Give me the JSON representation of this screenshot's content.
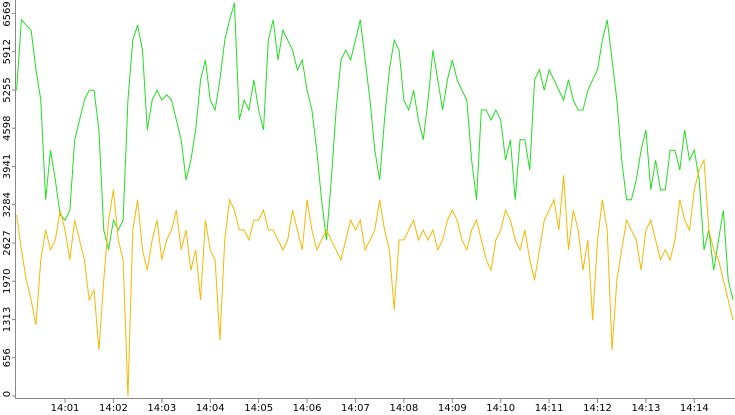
{
  "chart_data": {
    "type": "line",
    "x": [
      0,
      0.1,
      0.2,
      0.3,
      0.4,
      0.5,
      0.6,
      0.7,
      0.8,
      0.9,
      1,
      1.1,
      1.2,
      1.3,
      1.4,
      1.5,
      1.6,
      1.7,
      1.8,
      1.9,
      2,
      2.1,
      2.2,
      2.3,
      2.4,
      2.5,
      2.6,
      2.7,
      2.8,
      2.9,
      3,
      3.1,
      3.2,
      3.3,
      3.4,
      3.5,
      3.6,
      3.7,
      3.8,
      3.9,
      4,
      4.1,
      4.2,
      4.3,
      4.4,
      4.5,
      4.6,
      4.7,
      4.8,
      4.9,
      5,
      5.1,
      5.2,
      5.3,
      5.4,
      5.5,
      5.6,
      5.7,
      5.8,
      5.9,
      6,
      6.1,
      6.2,
      6.3,
      6.4,
      6.5,
      6.6,
      6.7,
      6.8,
      6.9,
      7,
      7.1,
      7.2,
      7.3,
      7.4,
      7.5,
      7.6,
      7.7,
      7.8,
      7.9,
      8,
      8.1,
      8.2,
      8.3,
      8.4,
      8.5,
      8.6,
      8.7,
      8.8,
      8.9,
      9,
      9.1,
      9.2,
      9.3,
      9.4,
      9.5,
      9.6,
      9.7,
      9.8,
      9.9,
      10,
      10.1,
      10.2,
      10.3,
      10.4,
      10.5,
      10.6,
      10.7,
      10.8,
      10.9,
      11,
      11.1,
      11.2,
      11.3,
      11.4,
      11.5,
      11.6,
      11.7,
      11.8,
      11.9,
      12,
      12.1,
      12.2,
      12.3,
      12.4,
      12.5,
      12.6,
      12.7,
      12.8,
      12.9,
      13,
      13.1,
      13.2,
      13.3,
      13.4,
      13.5,
      13.6,
      13.7,
      13.8,
      13.9,
      14,
      14.1,
      14.2,
      14.3,
      14.4,
      14.5,
      14.6,
      14.7,
      14.8
    ],
    "series": [
      {
        "color": "#22dd22",
        "values": [
          5250,
          6460,
          6370,
          6280,
          5600,
          5080,
          3370,
          4220,
          3710,
          3110,
          3020,
          3190,
          4400,
          4740,
          5080,
          5250,
          5250,
          4570,
          2850,
          2510,
          3020,
          2850,
          3020,
          5080,
          6110,
          6370,
          5940,
          4570,
          5080,
          5250,
          5080,
          5170,
          5080,
          4740,
          4400,
          3710,
          4050,
          4570,
          5430,
          5770,
          5080,
          4910,
          5430,
          6110,
          6460,
          6750,
          4740,
          5080,
          4910,
          5430,
          4910,
          4570,
          6110,
          6460,
          5770,
          6280,
          6110,
          5940,
          5600,
          5770,
          5250,
          4910,
          4220,
          3370,
          2680,
          3710,
          4910,
          5770,
          5940,
          5770,
          6110,
          6460,
          5770,
          5080,
          4220,
          3710,
          4740,
          5600,
          6110,
          5940,
          5080,
          4910,
          5250,
          4740,
          4400,
          5080,
          5940,
          5430,
          4910,
          5430,
          5770,
          5430,
          5250,
          5080,
          4050,
          3370,
          4910,
          4910,
          4740,
          4910,
          4740,
          4050,
          4400,
          3370,
          4400,
          4400,
          3880,
          5430,
          5600,
          5250,
          5600,
          5430,
          5250,
          5080,
          5430,
          5080,
          4910,
          4910,
          5250,
          5430,
          5600,
          6110,
          6460,
          5770,
          5080,
          4050,
          3370,
          3370,
          3710,
          4220,
          4570,
          3540,
          4050,
          3540,
          3540,
          4220,
          4220,
          3880,
          4570,
          4050,
          4220,
          3710,
          2510,
          2850,
          2160,
          2680,
          3190,
          1990,
          1650
        ]
      },
      {
        "color": "#f5b800",
        "values": [
          3110,
          2510,
          1990,
          1650,
          1220,
          2340,
          2850,
          2510,
          2680,
          3190,
          2850,
          2340,
          3020,
          2680,
          2340,
          1650,
          1820,
          790,
          1990,
          3020,
          3540,
          2680,
          2340,
          0,
          2850,
          3370,
          2510,
          2160,
          2680,
          3020,
          2340,
          2680,
          2850,
          3190,
          2510,
          2850,
          2160,
          2510,
          1650,
          3020,
          2510,
          2340,
          960,
          2680,
          3370,
          3190,
          2850,
          2850,
          2680,
          3020,
          3020,
          3190,
          2850,
          2850,
          2680,
          2510,
          2680,
          3190,
          2850,
          2510,
          3370,
          2850,
          2510,
          2680,
          2850,
          2680,
          2510,
          2340,
          2680,
          3020,
          2850,
          3020,
          2510,
          2680,
          2850,
          3370,
          2850,
          2510,
          1480,
          2680,
          2680,
          2850,
          3020,
          2680,
          2850,
          2680,
          2850,
          2510,
          2680,
          3020,
          3190,
          3020,
          2680,
          2510,
          2850,
          3020,
          2680,
          2340,
          2160,
          2680,
          2850,
          3190,
          3020,
          2680,
          2510,
          2850,
          2340,
          1990,
          2510,
          3020,
          3190,
          3370,
          2850,
          3790,
          2510,
          3190,
          2850,
          2160,
          2680,
          1300,
          2680,
          3370,
          2850,
          790,
          1990,
          2510,
          3020,
          2850,
          2680,
          2160,
          2850,
          3020,
          2680,
          2340,
          2510,
          2340,
          2680,
          3370,
          3020,
          2850,
          3540,
          3880,
          4050,
          2850,
          2510,
          2340,
          1990,
          1650,
          1300
        ]
      }
    ],
    "xlim": [
      0,
      14.84
    ],
    "xticks": [
      {
        "value": 1,
        "label": "14:01"
      },
      {
        "value": 2,
        "label": "14:02"
      },
      {
        "value": 3,
        "label": "14:03"
      },
      {
        "value": 4,
        "label": "14:04"
      },
      {
        "value": 5,
        "label": "14:05"
      },
      {
        "value": 6,
        "label": "14:06"
      },
      {
        "value": 7,
        "label": "14:07"
      },
      {
        "value": 8,
        "label": "14:08"
      },
      {
        "value": 9,
        "label": "14:09"
      },
      {
        "value": 10,
        "label": "14:10"
      },
      {
        "value": 11,
        "label": "14:11"
      },
      {
        "value": 12,
        "label": "14:12"
      },
      {
        "value": 13,
        "label": "14:13"
      },
      {
        "value": 14,
        "label": "14:14"
      }
    ],
    "ylim": [
      0,
      6800
    ],
    "yticks": [
      0,
      656,
      1313,
      1970,
      2627,
      3284,
      3941,
      4598,
      5255,
      5912,
      6569
    ]
  }
}
